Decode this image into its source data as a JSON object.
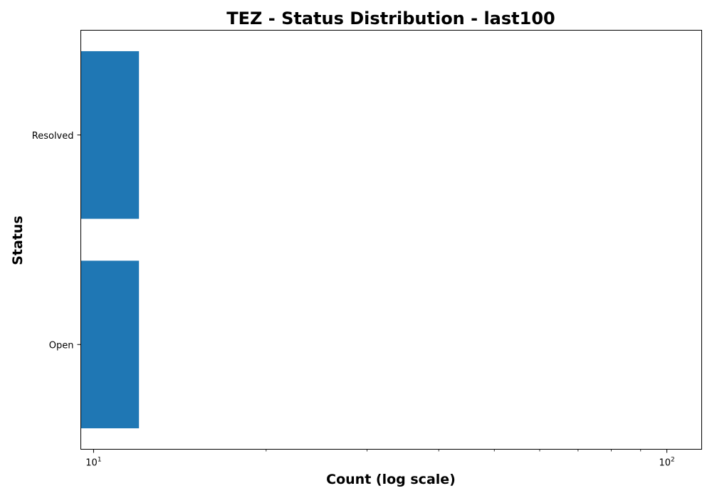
{
  "chart_data": {
    "type": "bar",
    "orientation": "horizontal",
    "title": "TEZ - Status Distribution - last100",
    "xlabel": "Count (log scale)",
    "ylabel": "Status",
    "x_scale": "log",
    "xlim": [
      9.5,
      115
    ],
    "x_major_ticks": [
      {
        "value": 10,
        "base": "10",
        "exponent": "1"
      },
      {
        "value": 100,
        "base": "10",
        "exponent": "2"
      }
    ],
    "x_minor_ticks": [
      20,
      30,
      40,
      50,
      60,
      70,
      80,
      90
    ],
    "categories": [
      "Resolved",
      "Open"
    ],
    "values": [
      12,
      12
    ],
    "bar_color": "#1f77b4",
    "grid": false,
    "legend": "none"
  }
}
